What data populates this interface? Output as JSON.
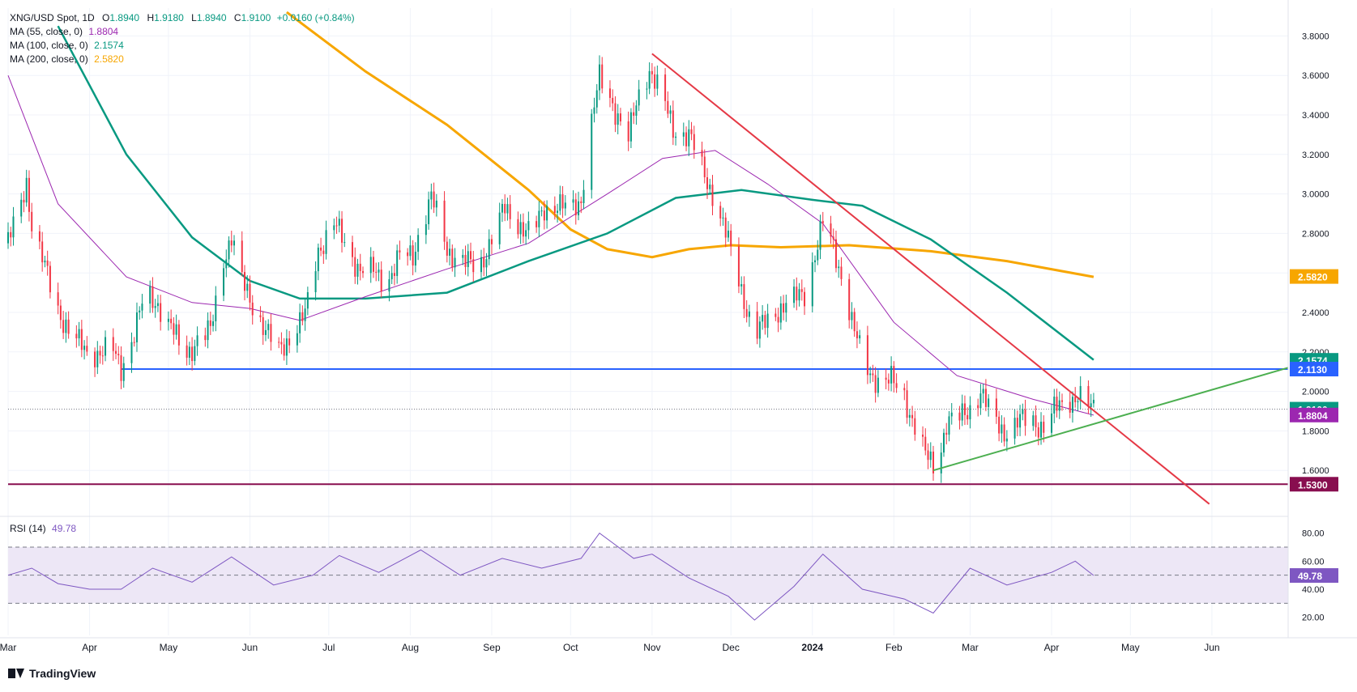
{
  "header": {
    "symbol": "XNG/USD Spot, 1D",
    "ohlc": {
      "o_label": "O",
      "o": "1.8940",
      "h_label": "H",
      "h": "1.9180",
      "l_label": "L",
      "l": "1.8940",
      "c_label": "C",
      "c": "1.9100",
      "change": "+0.0160 (+0.84%)"
    },
    "ma55": {
      "label": "MA (55, close, 0)",
      "value": "1.8804"
    },
    "ma100": {
      "label": "MA (100, close, 0)",
      "value": "2.1574"
    },
    "ma200": {
      "label": "MA (200, close, 0)",
      "value": "2.5820"
    },
    "rsi": {
      "label": "RSI (14)",
      "value": "49.78"
    }
  },
  "brand": "TradingView",
  "colors": {
    "up": "#089981",
    "down": "#f23645",
    "ma55": "#9c27b0",
    "ma100": "#089981",
    "ma200": "#f7a600",
    "blue_line": "#2962ff",
    "purple_line": "#880e4f",
    "red_trend": "#e53946",
    "green_trend": "#4caf50",
    "rsi": "#7e57c2",
    "rsi_band": "#ede7f6",
    "last_price": "#089981"
  },
  "chart_data": {
    "type": "candlestick",
    "price_axis": {
      "min": 1.4,
      "max": 3.9,
      "ticks": [
        "1.6000",
        "1.8000",
        "2.0000",
        "2.2000",
        "2.4000",
        "2.6000",
        "2.8000",
        "3.0000",
        "3.2000",
        "3.4000",
        "3.6000",
        "3.8000"
      ]
    },
    "time_axis": {
      "labels": [
        "Mar",
        "Apr",
        "May",
        "Jun",
        "Jul",
        "Aug",
        "Sep",
        "Oct",
        "Nov",
        "Dec",
        "2024",
        "Feb",
        "Mar",
        "Apr",
        "May",
        "Jun"
      ]
    },
    "price_labels": [
      {
        "text": "2.5820",
        "price": 2.582,
        "color": "#f7a600"
      },
      {
        "text": "2.1574",
        "price": 2.1574,
        "color": "#089981"
      },
      {
        "text": "2.1130",
        "price": 2.113,
        "color": "#2962ff"
      },
      {
        "text": "1.9100",
        "price": 1.91,
        "color": "#089981"
      },
      {
        "text": "1.8804",
        "price": 1.8804,
        "color": "#9c27b0"
      },
      {
        "text": "1.5300",
        "price": 1.53,
        "color": "#880e4f"
      }
    ],
    "horizontal_lines": [
      {
        "name": "support-2.1130",
        "price": 2.113,
        "from_date": "2023-04-13"
      },
      {
        "name": "support-1.5300",
        "price": 1.53,
        "from_date": "2023-03-01"
      }
    ],
    "trendlines": [
      {
        "name": "descending-resistance",
        "points": [
          [
            "2023-11-01",
            3.71
          ],
          [
            "2024-05-31",
            1.43
          ]
        ]
      },
      {
        "name": "ascending-support",
        "points": [
          [
            "2024-02-16",
            1.6
          ],
          [
            "2024-06-30",
            2.12
          ]
        ]
      }
    ],
    "price_path": [
      [
        "2023-03-01",
        2.75
      ],
      [
        "2023-03-06",
        2.95
      ],
      [
        "2023-03-08",
        3.07
      ],
      [
        "2023-03-10",
        2.85
      ],
      [
        "2023-03-15",
        2.62
      ],
      [
        "2023-03-20",
        2.42
      ],
      [
        "2023-03-25",
        2.28
      ],
      [
        "2023-03-31",
        2.2
      ],
      [
        "2023-04-05",
        2.2
      ],
      [
        "2023-04-10",
        2.2
      ],
      [
        "2023-04-13",
        2.12
      ],
      [
        "2023-04-18",
        2.3
      ],
      [
        "2023-04-22",
        2.48
      ],
      [
        "2023-04-27",
        2.45
      ],
      [
        "2023-05-02",
        2.32
      ],
      [
        "2023-05-07",
        2.18
      ],
      [
        "2023-05-12",
        2.26
      ],
      [
        "2023-05-17",
        2.3
      ],
      [
        "2023-05-22",
        2.68
      ],
      [
        "2023-05-25",
        2.78
      ],
      [
        "2023-05-29",
        2.55
      ],
      [
        "2023-06-03",
        2.42
      ],
      [
        "2023-06-08",
        2.28
      ],
      [
        "2023-06-12",
        2.2
      ],
      [
        "2023-06-17",
        2.3
      ],
      [
        "2023-06-22",
        2.38
      ],
      [
        "2023-06-27",
        2.72
      ],
      [
        "2023-07-03",
        2.85
      ],
      [
        "2023-07-08",
        2.72
      ],
      [
        "2023-07-13",
        2.62
      ],
      [
        "2023-07-18",
        2.6
      ],
      [
        "2023-07-23",
        2.56
      ],
      [
        "2023-07-28",
        2.68
      ],
      [
        "2023-08-02",
        2.68
      ],
      [
        "2023-08-05",
        2.85
      ],
      [
        "2023-08-09",
        2.98
      ],
      [
        "2023-08-15",
        2.72
      ],
      [
        "2023-08-22",
        2.65
      ],
      [
        "2023-08-27",
        2.62
      ],
      [
        "2023-09-01",
        2.78
      ],
      [
        "2023-09-06",
        2.92
      ],
      [
        "2023-09-11",
        2.86
      ],
      [
        "2023-09-16",
        2.78
      ],
      [
        "2023-09-21",
        2.93
      ],
      [
        "2023-09-26",
        2.95
      ],
      [
        "2023-10-01",
        2.9
      ],
      [
        "2023-10-05",
        2.98
      ],
      [
        "2023-10-08",
        3.3
      ],
      [
        "2023-10-12",
        3.58
      ],
      [
        "2023-10-17",
        3.46
      ],
      [
        "2023-10-23",
        3.28
      ],
      [
        "2023-10-27",
        3.5
      ],
      [
        "2023-10-31",
        3.64
      ],
      [
        "2023-11-05",
        3.48
      ],
      [
        "2023-11-09",
        3.33
      ],
      [
        "2023-11-15",
        3.3
      ],
      [
        "2023-11-20",
        3.12
      ],
      [
        "2023-11-25",
        2.98
      ],
      [
        "2023-11-30",
        2.75
      ],
      [
        "2023-12-05",
        2.52
      ],
      [
        "2023-12-10",
        2.28
      ],
      [
        "2023-12-15",
        2.36
      ],
      [
        "2023-12-20",
        2.43
      ],
      [
        "2023-12-25",
        2.46
      ],
      [
        "2023-12-29",
        2.5
      ],
      [
        "2024-01-02",
        2.7
      ],
      [
        "2024-01-05",
        2.85
      ],
      [
        "2024-01-09",
        2.72
      ],
      [
        "2024-01-13",
        2.55
      ],
      [
        "2024-01-17",
        2.3
      ],
      [
        "2024-01-21",
        2.12
      ],
      [
        "2024-01-26",
        2.06
      ],
      [
        "2024-01-31",
        2.05
      ],
      [
        "2024-02-05",
        1.98
      ],
      [
        "2024-02-09",
        1.82
      ],
      [
        "2024-02-13",
        1.67
      ],
      [
        "2024-02-17",
        1.62
      ],
      [
        "2024-02-21",
        1.84
      ],
      [
        "2024-02-26",
        1.86
      ],
      [
        "2024-03-01",
        1.92
      ],
      [
        "2024-03-05",
        2.0
      ],
      [
        "2024-03-09",
        1.87
      ],
      [
        "2024-03-14",
        1.8
      ],
      [
        "2024-03-19",
        1.84
      ],
      [
        "2024-03-24",
        1.86
      ],
      [
        "2024-03-29",
        1.82
      ],
      [
        "2024-04-02",
        1.9
      ],
      [
        "2024-04-07",
        1.96
      ],
      [
        "2024-04-11",
        1.98
      ],
      [
        "2024-04-14",
        1.92
      ],
      [
        "2024-04-17",
        1.91
      ]
    ],
    "ma200_path": [
      [
        "2023-06-15",
        3.92
      ],
      [
        "2023-07-15",
        3.62
      ],
      [
        "2023-08-15",
        3.35
      ],
      [
        "2023-09-15",
        3.02
      ],
      [
        "2023-10-01",
        2.82
      ],
      [
        "2023-10-15",
        2.72
      ],
      [
        "2023-11-01",
        2.68
      ],
      [
        "2023-11-15",
        2.72
      ],
      [
        "2023-12-01",
        2.74
      ],
      [
        "2023-12-20",
        2.73
      ],
      [
        "2024-01-15",
        2.74
      ],
      [
        "2024-02-15",
        2.71
      ],
      [
        "2024-03-15",
        2.66
      ],
      [
        "2024-04-17",
        2.58
      ]
    ],
    "ma100_path": [
      [
        "2023-03-20",
        3.85
      ],
      [
        "2023-04-15",
        3.2
      ],
      [
        "2023-05-10",
        2.78
      ],
      [
        "2023-06-01",
        2.56
      ],
      [
        "2023-06-20",
        2.47
      ],
      [
        "2023-07-15",
        2.47
      ],
      [
        "2023-08-15",
        2.5
      ],
      [
        "2023-09-15",
        2.66
      ],
      [
        "2023-10-15",
        2.8
      ],
      [
        "2023-11-10",
        2.98
      ],
      [
        "2023-12-05",
        3.02
      ],
      [
        "2024-01-01",
        2.97
      ],
      [
        "2024-01-20",
        2.94
      ],
      [
        "2024-02-15",
        2.77
      ],
      [
        "2024-03-15",
        2.5
      ],
      [
        "2024-04-17",
        2.16
      ]
    ],
    "ma55_path": [
      [
        "2023-03-01",
        3.6
      ],
      [
        "2023-03-20",
        2.95
      ],
      [
        "2023-04-15",
        2.58
      ],
      [
        "2023-05-10",
        2.45
      ],
      [
        "2023-06-01",
        2.42
      ],
      [
        "2023-06-20",
        2.36
      ],
      [
        "2023-07-15",
        2.48
      ],
      [
        "2023-08-15",
        2.62
      ],
      [
        "2023-09-15",
        2.75
      ],
      [
        "2023-10-15",
        3.0
      ],
      [
        "2023-11-05",
        3.18
      ],
      [
        "2023-11-25",
        3.22
      ],
      [
        "2023-12-15",
        3.05
      ],
      [
        "2024-01-05",
        2.85
      ],
      [
        "2024-02-01",
        2.35
      ],
      [
        "2024-02-25",
        2.08
      ],
      [
        "2024-03-25",
        1.96
      ],
      [
        "2024-04-17",
        1.88
      ]
    ],
    "rsi": {
      "label": "RSI (14)",
      "levels": [
        70,
        50,
        30
      ],
      "ticks": [
        "20.00",
        "40.00",
        "60.00",
        "80.00"
      ],
      "last": 49.78,
      "path": [
        [
          "2023-03-01",
          50
        ],
        [
          "2023-03-10",
          55
        ],
        [
          "2023-03-20",
          44
        ],
        [
          "2023-04-01",
          40
        ],
        [
          "2023-04-13",
          40
        ],
        [
          "2023-04-25",
          55
        ],
        [
          "2023-05-10",
          45
        ],
        [
          "2023-05-25",
          63
        ],
        [
          "2023-06-10",
          43
        ],
        [
          "2023-06-25",
          50
        ],
        [
          "2023-07-05",
          64
        ],
        [
          "2023-07-20",
          52
        ],
        [
          "2023-08-05",
          68
        ],
        [
          "2023-08-20",
          50
        ],
        [
          "2023-09-05",
          62
        ],
        [
          "2023-09-20",
          55
        ],
        [
          "2023-10-05",
          62
        ],
        [
          "2023-10-12",
          80
        ],
        [
          "2023-10-25",
          62
        ],
        [
          "2023-11-01",
          65
        ],
        [
          "2023-11-15",
          48
        ],
        [
          "2023-11-30",
          35
        ],
        [
          "2023-12-10",
          18
        ],
        [
          "2023-12-25",
          42
        ],
        [
          "2024-01-05",
          65
        ],
        [
          "2024-01-20",
          40
        ],
        [
          "2024-02-05",
          33
        ],
        [
          "2024-02-16",
          23
        ],
        [
          "2024-03-01",
          55
        ],
        [
          "2024-03-15",
          43
        ],
        [
          "2024-04-01",
          52
        ],
        [
          "2024-04-10",
          60
        ],
        [
          "2024-04-17",
          49.78
        ]
      ]
    }
  }
}
